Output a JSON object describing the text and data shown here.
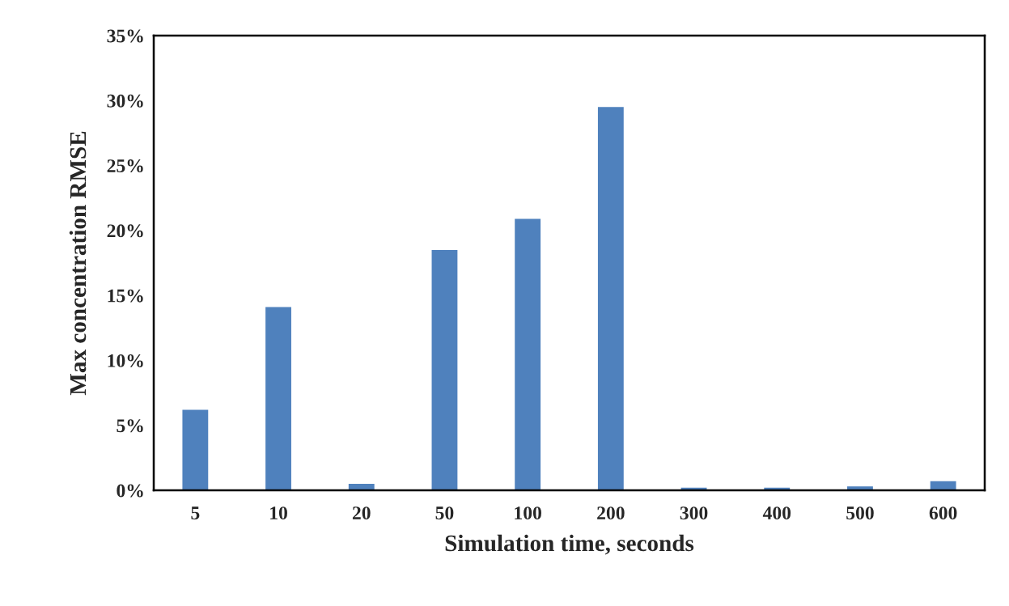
{
  "chart_data": {
    "type": "bar",
    "xlabel": "Simulation time, seconds",
    "ylabel": "Max concentration RMSE",
    "categories": [
      "5",
      "10",
      "20",
      "50",
      "100",
      "200",
      "300",
      "400",
      "500",
      "600"
    ],
    "values": [
      6.2,
      14.1,
      0.5,
      18.5,
      20.9,
      29.5,
      0.2,
      0.2,
      0.3,
      0.7
    ],
    "color": "#4f81bd",
    "ylim": [
      0,
      35
    ],
    "yticks": [
      {
        "value": 0,
        "label": "0%"
      },
      {
        "value": 5,
        "label": "5%"
      },
      {
        "value": 10,
        "label": "10%"
      },
      {
        "value": 15,
        "label": "15%"
      },
      {
        "value": 20,
        "label": "20%"
      },
      {
        "value": 25,
        "label": "25%"
      },
      {
        "value": 30,
        "label": "30%"
      },
      {
        "value": 35,
        "label": "35%"
      }
    ],
    "grid": false,
    "legend": false
  }
}
